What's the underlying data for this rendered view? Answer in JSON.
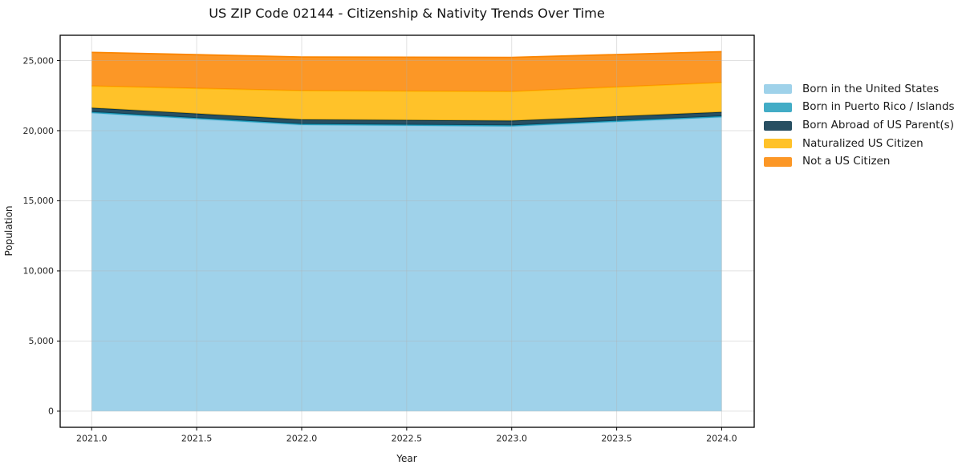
{
  "title": "US ZIP Code 02144 - Citizenship & Nativity Trends Over Time",
  "chart_data": {
    "type": "area",
    "stacked": true,
    "title": "US ZIP Code 02144 - Citizenship & Nativity Trends Over Time",
    "xlabel": "Year",
    "ylabel": "Population",
    "x": [
      2021,
      2022,
      2023,
      2024
    ],
    "series": [
      {
        "name": "Born in the United States",
        "color": "#8ECAE6",
        "values": [
          21250,
          20400,
          20300,
          20950
        ]
      },
      {
        "name": "Born in Puerto Rico / Islands",
        "color": "#219EBC",
        "values": [
          80,
          80,
          80,
          80
        ]
      },
      {
        "name": "Born Abroad of US Parent(s)",
        "color": "#023047",
        "values": [
          300,
          320,
          330,
          300
        ]
      },
      {
        "name": "Naturalized US Citizen",
        "color": "#FFB703",
        "values": [
          1550,
          2050,
          2080,
          2100
        ]
      },
      {
        "name": "Not a US Citizen",
        "color": "#FB8500",
        "values": [
          2400,
          2400,
          2430,
          2200
        ]
      }
    ],
    "fill_alpha": 0.85,
    "xlim": [
      2020.85,
      2024.155
    ],
    "ylim": [
      -1150,
      26800
    ],
    "xticks": {
      "values": [
        2021,
        2021.5,
        2022,
        2022.5,
        2023,
        2023.5,
        2024
      ],
      "labels": [
        "2021.0",
        "2021.5",
        "2022.0",
        "2022.5",
        "2023.0",
        "2023.5",
        "2024.0"
      ]
    },
    "yticks": {
      "values": [
        0,
        5000,
        10000,
        15000,
        20000,
        25000
      ],
      "labels": [
        "0",
        "5,000",
        "10,000",
        "15,000",
        "20,000",
        "25,000"
      ]
    },
    "grid": true,
    "grid_color": "#b0b0b0",
    "grid_alpha": 0.38,
    "legend_position": "right of plot, upper"
  }
}
